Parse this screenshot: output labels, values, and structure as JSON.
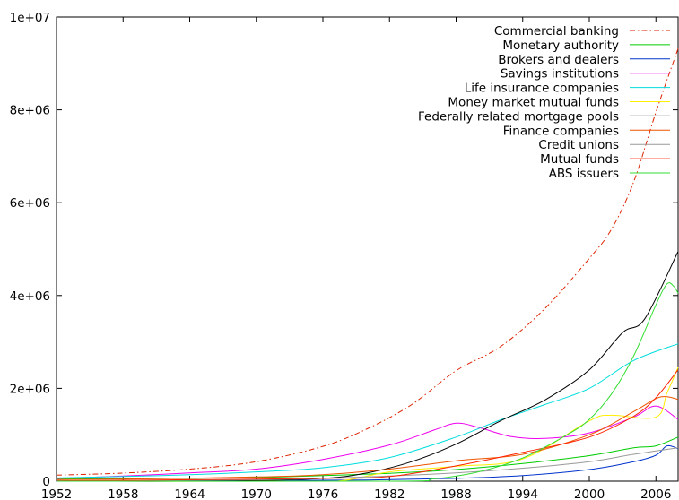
{
  "chart_data": {
    "type": "line",
    "title": "",
    "xlabel": "",
    "ylabel": "",
    "xlim": [
      1952,
      2008
    ],
    "ylim": [
      0,
      10000000
    ],
    "x_ticks": [
      {
        "value": 1952,
        "label": "1952"
      },
      {
        "value": 1958,
        "label": "1958"
      },
      {
        "value": 1964,
        "label": "1964"
      },
      {
        "value": 1970,
        "label": "1970"
      },
      {
        "value": 1976,
        "label": "1976"
      },
      {
        "value": 1982,
        "label": "1982"
      },
      {
        "value": 1988,
        "label": "1988"
      },
      {
        "value": 1994,
        "label": "1994"
      },
      {
        "value": 2000,
        "label": "2000"
      },
      {
        "value": 2006,
        "label": "2006"
      }
    ],
    "y_ticks": [
      {
        "value": 0,
        "label": "0"
      },
      {
        "value": 2000000,
        "label": "2e+06"
      },
      {
        "value": 4000000,
        "label": "4e+06"
      },
      {
        "value": 6000000,
        "label": "6e+06"
      },
      {
        "value": 8000000,
        "label": "8e+06"
      },
      {
        "value": 10000000,
        "label": "1e+07"
      }
    ],
    "grid": false,
    "legend_position": "top-right",
    "series": [
      {
        "name": "Commercial banking",
        "color": "#dd2200",
        "dash": "dash-dot",
        "points": [
          [
            1952,
            130000
          ],
          [
            1958,
            175000
          ],
          [
            1964,
            260000
          ],
          [
            1970,
            420000
          ],
          [
            1976,
            750000
          ],
          [
            1980,
            1130000
          ],
          [
            1984,
            1650000
          ],
          [
            1988,
            2380000
          ],
          [
            1992,
            2900000
          ],
          [
            1996,
            3720000
          ],
          [
            2000,
            4800000
          ],
          [
            2002,
            5430000
          ],
          [
            2004,
            6450000
          ],
          [
            2006,
            7950000
          ],
          [
            2008,
            9320000
          ]
        ]
      },
      {
        "name": "Monetary authority",
        "color": "#00cc00",
        "dash": "solid",
        "points": [
          [
            1952,
            50000
          ],
          [
            1960,
            55000
          ],
          [
            1970,
            80000
          ],
          [
            1976,
            120000
          ],
          [
            1982,
            170000
          ],
          [
            1988,
            250000
          ],
          [
            1994,
            380000
          ],
          [
            2000,
            550000
          ],
          [
            2004,
            720000
          ],
          [
            2006,
            760000
          ],
          [
            2008,
            950000
          ]
        ]
      },
      {
        "name": "Brokers and dealers",
        "color": "#0033cc",
        "dash": "solid",
        "points": [
          [
            1952,
            5000
          ],
          [
            1970,
            15000
          ],
          [
            1980,
            25000
          ],
          [
            1988,
            60000
          ],
          [
            1994,
            120000
          ],
          [
            2000,
            250000
          ],
          [
            2004,
            420000
          ],
          [
            2006,
            560000
          ],
          [
            2007,
            760000
          ],
          [
            2008,
            700000
          ]
        ]
      },
      {
        "name": "Savings institutions",
        "color": "#ee00ee",
        "dash": "solid",
        "points": [
          [
            1952,
            60000
          ],
          [
            1958,
            110000
          ],
          [
            1964,
            180000
          ],
          [
            1970,
            260000
          ],
          [
            1976,
            470000
          ],
          [
            1982,
            780000
          ],
          [
            1986,
            1100000
          ],
          [
            1988,
            1250000
          ],
          [
            1990,
            1160000
          ],
          [
            1993,
            960000
          ],
          [
            1996,
            920000
          ],
          [
            2000,
            1040000
          ],
          [
            2004,
            1380000
          ],
          [
            2006,
            1620000
          ],
          [
            2008,
            1330000
          ]
        ]
      },
      {
        "name": "Life insurance companies",
        "color": "#00dddd",
        "dash": "solid",
        "points": [
          [
            1952,
            70000
          ],
          [
            1958,
            100000
          ],
          [
            1964,
            140000
          ],
          [
            1970,
            200000
          ],
          [
            1976,
            290000
          ],
          [
            1982,
            510000
          ],
          [
            1988,
            950000
          ],
          [
            1992,
            1320000
          ],
          [
            1996,
            1650000
          ],
          [
            2000,
            2000000
          ],
          [
            2004,
            2600000
          ],
          [
            2008,
            2960000
          ]
        ]
      },
      {
        "name": "Money market mutual funds",
        "color": "#ffee00",
        "dash": "solid",
        "points": [
          [
            1952,
            0
          ],
          [
            1974,
            0
          ],
          [
            1978,
            20000
          ],
          [
            1982,
            200000
          ],
          [
            1988,
            320000
          ],
          [
            1994,
            480000
          ],
          [
            2000,
            1300000
          ],
          [
            2002,
            1420000
          ],
          [
            2006,
            1380000
          ],
          [
            2007,
            1900000
          ],
          [
            2008,
            2450000
          ]
        ]
      },
      {
        "name": "Federally related mortgage pools",
        "color": "#000000",
        "dash": "solid",
        "points": [
          [
            1952,
            0
          ],
          [
            1968,
            5000
          ],
          [
            1976,
            60000
          ],
          [
            1980,
            180000
          ],
          [
            1984,
            420000
          ],
          [
            1988,
            800000
          ],
          [
            1992,
            1300000
          ],
          [
            1996,
            1750000
          ],
          [
            2000,
            2400000
          ],
          [
            2003,
            3200000
          ],
          [
            2005,
            3500000
          ],
          [
            2008,
            4950000
          ]
        ]
      },
      {
        "name": "Finance companies",
        "color": "#ee5500",
        "dash": "solid",
        "points": [
          [
            1952,
            30000
          ],
          [
            1960,
            50000
          ],
          [
            1970,
            90000
          ],
          [
            1976,
            140000
          ],
          [
            1982,
            260000
          ],
          [
            1988,
            440000
          ],
          [
            1994,
            580000
          ],
          [
            2000,
            1000000
          ],
          [
            2004,
            1500000
          ],
          [
            2006,
            1780000
          ],
          [
            2007,
            1820000
          ],
          [
            2008,
            1760000
          ]
        ]
      },
      {
        "name": "Credit unions",
        "color": "#999999",
        "dash": "solid",
        "points": [
          [
            1952,
            5000
          ],
          [
            1960,
            15000
          ],
          [
            1970,
            30000
          ],
          [
            1976,
            60000
          ],
          [
            1982,
            110000
          ],
          [
            1988,
            180000
          ],
          [
            1994,
            280000
          ],
          [
            2000,
            420000
          ],
          [
            2004,
            580000
          ],
          [
            2008,
            720000
          ]
        ]
      },
      {
        "name": "Mutual funds",
        "color": "#ff2200",
        "dash": "solid",
        "points": [
          [
            1952,
            8000
          ],
          [
            1964,
            30000
          ],
          [
            1976,
            60000
          ],
          [
            1982,
            100000
          ],
          [
            1988,
            330000
          ],
          [
            1994,
            620000
          ],
          [
            2000,
            950000
          ],
          [
            2004,
            1400000
          ],
          [
            2006,
            1800000
          ],
          [
            2008,
            2400000
          ]
        ]
      },
      {
        "name": "ABS issuers",
        "color": "#33dd33",
        "dash": "solid",
        "points": [
          [
            1952,
            0
          ],
          [
            1982,
            0
          ],
          [
            1986,
            50000
          ],
          [
            1990,
            200000
          ],
          [
            1994,
            500000
          ],
          [
            1998,
            1000000
          ],
          [
            2000,
            1330000
          ],
          [
            2002,
            1880000
          ],
          [
            2004,
            2700000
          ],
          [
            2006,
            3800000
          ],
          [
            2007,
            4250000
          ],
          [
            2007.6,
            4200000
          ],
          [
            2008,
            4050000
          ]
        ]
      }
    ]
  }
}
